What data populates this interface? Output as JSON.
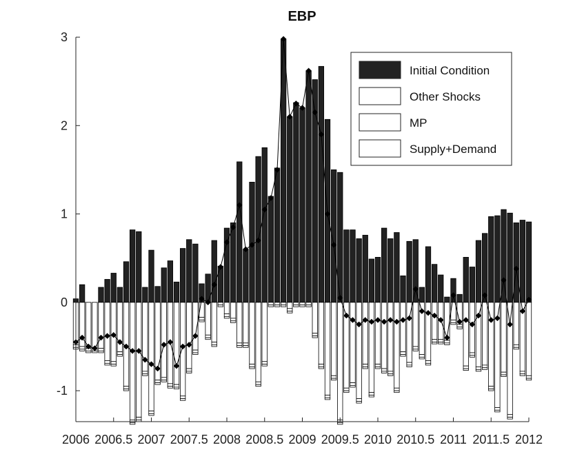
{
  "chart_data": {
    "type": "bar",
    "title": "EBP",
    "xlabel": "",
    "ylabel": "",
    "xlim": [
      2006,
      2012
    ],
    "ylim": [
      -1.35,
      3.0
    ],
    "x_ticks": [
      2006,
      2006.5,
      2007,
      2007.5,
      2008,
      2008.5,
      2009,
      2009.5,
      2010,
      2010.5,
      2011,
      2011.5,
      2012
    ],
    "x_tick_labels": [
      "2006",
      "2006.5",
      "2007",
      "2007.5",
      "2008",
      "2008.5",
      "2009",
      "2009.5",
      "2010",
      "2010.5",
      "2011",
      "2011.5",
      "2012"
    ],
    "y_ticks": [
      -1,
      0,
      1,
      2,
      3
    ],
    "y_tick_labels": [
      "-1",
      "0",
      "1",
      "2",
      "3"
    ],
    "stacked": true,
    "legend_position": "top-right",
    "x": [
      2006.0,
      2006.0833,
      2006.1667,
      2006.25,
      2006.3333,
      2006.4167,
      2006.5,
      2006.5833,
      2006.6667,
      2006.75,
      2006.8333,
      2006.9167,
      2007.0,
      2007.0833,
      2007.1667,
      2007.25,
      2007.3333,
      2007.4167,
      2007.5,
      2007.5833,
      2007.6667,
      2007.75,
      2007.8333,
      2007.9167,
      2008.0,
      2008.0833,
      2008.1667,
      2008.25,
      2008.3333,
      2008.4167,
      2008.5,
      2008.5833,
      2008.6667,
      2008.75,
      2008.8333,
      2008.9167,
      2009.0,
      2009.0833,
      2009.1667,
      2009.25,
      2009.3333,
      2009.4167,
      2009.5,
      2009.5833,
      2009.6667,
      2009.75,
      2009.8333,
      2009.9167,
      2010.0,
      2010.0833,
      2010.1667,
      2010.25,
      2010.3333,
      2010.4167,
      2010.5,
      2010.5833,
      2010.6667,
      2010.75,
      2010.8333,
      2010.9167,
      2011.0,
      2011.0833,
      2011.1667,
      2011.25,
      2011.3333,
      2011.4167,
      2011.5,
      2011.5833,
      2011.6667,
      2011.75,
      2011.8333,
      2011.9167,
      2012.0
    ],
    "series": [
      {
        "name": "Initial Condition",
        "color": "#222222",
        "values": [
          0.04,
          0.2,
          0.0,
          0.0,
          0.17,
          0.26,
          0.33,
          0.17,
          0.46,
          0.82,
          0.8,
          0.17,
          0.59,
          0.18,
          0.39,
          0.47,
          0.23,
          0.61,
          0.71,
          0.66,
          0.21,
          0.32,
          0.7,
          0.41,
          0.84,
          0.9,
          1.59,
          0.6,
          1.36,
          1.65,
          1.75,
          1.2,
          1.52,
          2.98,
          2.1,
          2.26,
          2.2,
          2.62,
          2.52,
          2.67,
          2.07,
          1.5,
          1.47,
          0.82,
          0.82,
          0.72,
          0.76,
          0.49,
          0.51,
          0.84,
          0.72,
          0.79,
          0.3,
          0.69,
          0.71,
          0.17,
          0.63,
          0.43,
          0.31,
          0.06,
          0.27,
          0.09,
          0.51,
          0.4,
          0.7,
          0.78,
          0.97,
          0.98,
          1.05,
          1.01,
          0.9,
          0.93,
          0.91
        ]
      },
      {
        "name": "Other Shocks",
        "color": "#ffffff",
        "values": [
          -0.48,
          -0.5,
          -0.52,
          -0.52,
          -0.52,
          -0.66,
          -0.67,
          -0.56,
          -0.95,
          -1.33,
          -1.3,
          -0.78,
          -1.23,
          -0.88,
          -0.85,
          -0.92,
          -0.93,
          -1.06,
          -0.75,
          -0.54,
          -0.17,
          -0.37,
          -0.45,
          0.0,
          -0.13,
          -0.18,
          -0.46,
          -0.46,
          -0.7,
          -0.9,
          -0.67,
          0.0,
          0.0,
          0.0,
          -0.07,
          0.0,
          0.0,
          0.0,
          -0.35,
          -0.7,
          -1.05,
          -0.83,
          -1.33,
          -0.97,
          -0.91,
          -1.09,
          -0.7,
          -1.02,
          -0.7,
          -0.75,
          -0.78,
          -0.97,
          -0.56,
          -0.68,
          -0.5,
          -0.59,
          -0.66,
          -0.42,
          -0.42,
          -0.43,
          -0.2,
          -0.25,
          -0.72,
          -0.57,
          -0.73,
          -0.71,
          -0.95,
          -1.19,
          -0.79,
          -1.27,
          -0.48,
          -0.78,
          -0.83
        ]
      },
      {
        "name": "MP",
        "color": "#ffffff",
        "values": [
          -0.03,
          -0.03,
          -0.03,
          -0.03,
          -0.03,
          -0.03,
          -0.03,
          -0.03,
          -0.03,
          -0.03,
          -0.03,
          -0.03,
          -0.03,
          -0.03,
          -0.03,
          -0.03,
          -0.03,
          -0.03,
          -0.03,
          -0.03,
          -0.03,
          -0.03,
          -0.03,
          -0.03,
          -0.03,
          -0.03,
          -0.03,
          -0.03,
          -0.03,
          -0.03,
          -0.03,
          -0.03,
          -0.03,
          -0.03,
          -0.03,
          -0.03,
          -0.03,
          -0.03,
          -0.03,
          -0.03,
          -0.03,
          -0.03,
          -0.03,
          -0.03,
          -0.03,
          -0.03,
          -0.03,
          -0.03,
          -0.03,
          -0.03,
          -0.03,
          -0.03,
          -0.03,
          -0.03,
          -0.03,
          -0.03,
          -0.03,
          -0.03,
          -0.03,
          -0.03,
          -0.03,
          -0.03,
          -0.03,
          -0.03,
          -0.03,
          -0.03,
          -0.03,
          -0.03,
          -0.03,
          -0.03,
          -0.03,
          -0.03,
          -0.03
        ]
      },
      {
        "name": "Supply+Demand",
        "color": "#ffffff",
        "values": [
          -0.02,
          -0.02,
          -0.02,
          -0.02,
          -0.02,
          -0.02,
          -0.02,
          -0.02,
          -0.02,
          -0.02,
          -0.02,
          -0.02,
          -0.02,
          -0.02,
          -0.02,
          -0.02,
          -0.02,
          -0.02,
          -0.02,
          -0.02,
          -0.02,
          -0.02,
          -0.02,
          -0.02,
          -0.02,
          -0.02,
          -0.02,
          -0.02,
          -0.02,
          -0.02,
          -0.02,
          -0.02,
          -0.02,
          -0.02,
          -0.02,
          -0.02,
          -0.02,
          -0.02,
          -0.02,
          -0.02,
          -0.02,
          -0.02,
          -0.02,
          -0.02,
          -0.02,
          -0.02,
          -0.02,
          -0.02,
          -0.02,
          -0.02,
          -0.02,
          -0.02,
          -0.02,
          -0.02,
          -0.02,
          -0.02,
          -0.02,
          -0.02,
          -0.02,
          -0.02,
          -0.02,
          -0.02,
          -0.02,
          -0.02,
          -0.02,
          -0.02,
          -0.02,
          -0.02,
          -0.02,
          -0.02,
          -0.02,
          -0.02,
          -0.02
        ]
      }
    ],
    "line": {
      "color": "#000000",
      "values": [
        -0.45,
        -0.4,
        -0.5,
        -0.52,
        -0.4,
        -0.38,
        -0.37,
        -0.45,
        -0.5,
        -0.55,
        -0.55,
        -0.65,
        -0.7,
        -0.75,
        -0.48,
        -0.45,
        -0.72,
        -0.5,
        -0.48,
        -0.38,
        0.04,
        0.0,
        0.2,
        0.4,
        0.68,
        0.85,
        1.1,
        0.6,
        0.65,
        0.7,
        1.05,
        1.18,
        1.5,
        2.98,
        2.1,
        2.25,
        2.2,
        2.62,
        2.15,
        1.9,
        1.0,
        0.65,
        0.05,
        -0.15,
        -0.2,
        -0.25,
        -0.2,
        -0.22,
        -0.2,
        -0.22,
        -0.2,
        -0.22,
        -0.2,
        -0.18,
        0.15,
        -0.1,
        -0.12,
        -0.15,
        -0.2,
        -0.4,
        0.08,
        -0.22,
        -0.2,
        -0.25,
        -0.15,
        0.08,
        -0.2,
        -0.18,
        0.25,
        -0.25,
        0.38,
        -0.1,
        0.03
      ]
    }
  }
}
